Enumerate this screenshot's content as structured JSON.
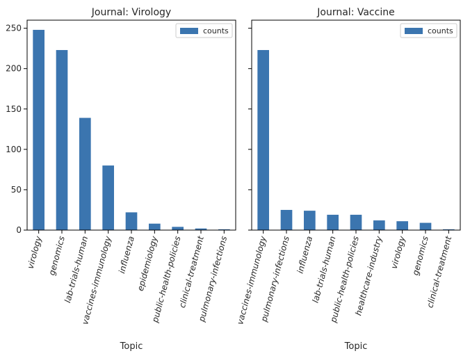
{
  "chart_data": [
    {
      "type": "bar",
      "title": "Journal: Virology",
      "xlabel": "Topic",
      "ylabel": "",
      "ylim": [
        0,
        260
      ],
      "yticks": [
        0,
        50,
        100,
        150,
        200,
        250
      ],
      "categories": [
        "virology",
        "genomics",
        "lab-trials-human",
        "vaccines-immunology",
        "influenza",
        "epidemiology",
        "public-health-policies",
        "clinical-treatment",
        "pulmonary-infections"
      ],
      "series": [
        {
          "name": "counts",
          "values": [
            248,
            223,
            139,
            80,
            22,
            8,
            4,
            2,
            1
          ],
          "color": "#3b75af"
        }
      ],
      "legend": "top-right",
      "grid": false
    },
    {
      "type": "bar",
      "title": "Journal: Vaccine",
      "xlabel": "Topic",
      "ylabel": "",
      "ylim": [
        0,
        260
      ],
      "yticks": [
        0,
        50,
        100,
        150,
        200,
        250
      ],
      "categories": [
        "vaccines-immunology",
        "pulmonary-infections",
        "influenza",
        "lab-trials-human",
        "public-health-policies",
        "healthcare-industry",
        "virology",
        "genomics",
        "clinical-treatment"
      ],
      "series": [
        {
          "name": "counts",
          "values": [
            223,
            25,
            24,
            19,
            19,
            12,
            11,
            9,
            1
          ],
          "color": "#3b75af"
        }
      ],
      "legend": "top-right",
      "grid": false
    }
  ]
}
